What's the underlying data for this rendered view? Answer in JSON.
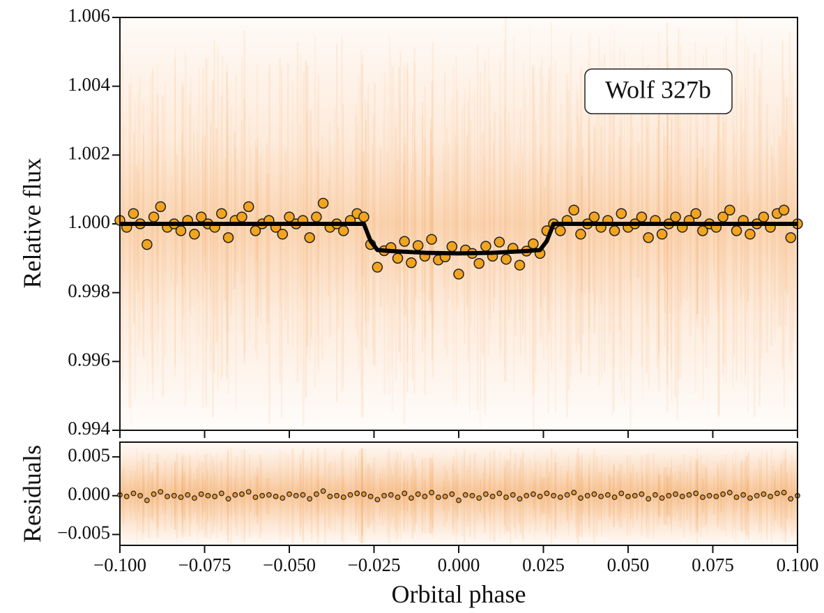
{
  "chart_data": [
    {
      "type": "scatter",
      "y_label": "Relative flux",
      "annotation": "Wolf 327b",
      "xlim": [
        -0.1,
        0.1
      ],
      "ylim": [
        0.994,
        1.006
      ],
      "yticks": [
        0.994,
        0.996,
        0.998,
        {
          "value": 1,
          "label": "1.000"
        },
        1.002,
        1.004,
        1.006
      ],
      "series": [
        {
          "type": "scatter",
          "color": "#f2a41f",
          "x": [
            -0.1,
            -0.098,
            -0.096,
            -0.094,
            -0.092,
            -0.09,
            -0.088,
            -0.086,
            -0.084,
            -0.082,
            -0.08,
            -0.078,
            -0.076,
            -0.074,
            -0.072,
            -0.07,
            -0.068,
            -0.066,
            -0.064,
            -0.062,
            -0.06,
            -0.058,
            -0.056,
            -0.054,
            -0.052,
            -0.05,
            -0.048,
            -0.046,
            -0.044,
            -0.042,
            -0.04,
            -0.038,
            -0.036,
            -0.034,
            -0.032,
            -0.03,
            -0.028,
            -0.026,
            -0.024,
            -0.022,
            -0.02,
            -0.018,
            -0.016,
            -0.014,
            -0.012,
            -0.01,
            -0.008,
            -0.006,
            -0.004,
            -0.002,
            0,
            0.002,
            0.004,
            0.006,
            0.008,
            0.01,
            0.012,
            0.014,
            0.016,
            0.018,
            0.02,
            0.022,
            0.024,
            0.026,
            0.028,
            0.03,
            0.032,
            0.034,
            0.036,
            0.038,
            0.04,
            0.042,
            0.044,
            0.046,
            0.048,
            0.05,
            0.052,
            0.054,
            0.056,
            0.058,
            0.06,
            0.062,
            0.064,
            0.066,
            0.068,
            0.07,
            0.072,
            0.074,
            0.076,
            0.078,
            0.08,
            0.082,
            0.084,
            0.086,
            0.088,
            0.09,
            0.092,
            0.094,
            0.096,
            0.098,
            0.1
          ],
          "values": [
            1.0001,
            0.9999,
            1.0003,
            1.0,
            0.9994,
            1.0002,
            1.0005,
            0.9999,
            1.0,
            0.9998,
            1.0001,
            0.9997,
            1.0002,
            1.0,
            0.9999,
            1.0003,
            0.9996,
            1.0001,
            1.0002,
            1.0005,
            0.9998,
            1.0,
            1.0001,
            0.9999,
            0.9997,
            1.0002,
            1.0,
            1.0001,
            0.9996,
            1.0002,
            1.0006,
            0.9999,
            1.0,
            0.9998,
            1.0001,
            1.0003,
            1.0002,
            0.9994,
            0.99874,
            0.99922,
            0.99931,
            0.999,
            0.99949,
            0.99887,
            0.99937,
            0.99906,
            0.99955,
            0.99895,
            0.99904,
            0.99934,
            0.99854,
            0.99924,
            0.99914,
            0.99885,
            0.99935,
            0.99906,
            0.99947,
            0.99897,
            0.99929,
            0.9988,
            0.99921,
            0.99942,
            0.99914,
            0.9998,
            1.0,
            0.9998,
            1.0001,
            1.0004,
            0.9997,
            1.0,
            1.0002,
            0.9999,
            1.0001,
            0.9998,
            1.0003,
            0.9999,
            1.0,
            1.0002,
            0.9996,
            1.0001,
            0.9997,
            1.0,
            1.0002,
            0.9999,
            1.0001,
            1.0003,
            0.9998,
            1.0,
            0.9999,
            1.0002,
            1.0004,
            0.9998,
            1.0001,
            0.9997,
            1.0,
            1.0002,
            0.9999,
            1.0003,
            1.0004,
            0.9996,
            1.0
          ]
        },
        {
          "type": "line",
          "color": "#000000",
          "x": [
            -0.1,
            -0.028,
            -0.026,
            -0.024,
            -0.02,
            -0.01,
            0,
            0.01,
            0.02,
            0.024,
            0.026,
            0.028,
            0.1
          ],
          "values": [
            1,
            1,
            0.9995,
            0.99924,
            0.99921,
            0.99916,
            0.99914,
            0.99916,
            0.99921,
            0.99924,
            0.9995,
            1,
            1
          ]
        }
      ]
    },
    {
      "type": "scatter",
      "y_label": "Residuals",
      "x_label": "Orbital phase",
      "xlim": [
        -0.1,
        0.1
      ],
      "xticks": [
        {
          "value": -0.1,
          "label": "−0.100"
        },
        {
          "value": -0.075,
          "label": "−0.075"
        },
        {
          "value": -0.05,
          "label": "−0.050"
        },
        {
          "value": -0.025,
          "label": "−0.025"
        },
        {
          "value": 0,
          "label": "0.000"
        },
        0.025,
        {
          "value": 0.05,
          "label": "0.050"
        },
        0.075,
        {
          "value": 0.1,
          "label": "0.100"
        }
      ],
      "ylim": [
        -0.0064,
        0.0069
      ],
      "yticks": [
        {
          "value": -0.005,
          "label": "−0.005"
        },
        {
          "value": 0,
          "label": "0.000"
        },
        0.005
      ],
      "series": [
        {
          "type": "scatter",
          "color": "#e59a3c",
          "values": [
            0.0001,
            -0.0001,
            0.0003,
            0,
            -0.0006,
            0.0002,
            0.0005,
            -0.0001,
            0,
            -0.0002,
            0.0001,
            -0.0003,
            0.0002,
            0,
            -0.0001,
            0.0003,
            -0.0004,
            0.0001,
            0.0002,
            0.0005,
            -0.0002,
            0,
            0.0001,
            -0.0001,
            -0.0003,
            0.0002,
            0,
            0.0001,
            -0.0004,
            0.0002,
            0.0006,
            -0.0001,
            0,
            -0.0002,
            0.0001,
            0.0003,
            0.0002,
            -0.0001,
            -0.0005,
            0,
            0.0001,
            -0.0002,
            0.0003,
            -0.0003,
            0.0002,
            -0.0001,
            0.0004,
            -0.0002,
            -0.0001,
            0.0002,
            -0.0006,
            0.0001,
            0,
            -0.0003,
            0.0002,
            -0.0001,
            0.0003,
            -0.0002,
            0.0001,
            -0.0004,
            0,
            0.0002,
            -0.0001,
            0.0003,
            0,
            -0.0002,
            0.0001,
            0.0004,
            -0.0003,
            0,
            0.0002,
            -0.0001,
            0.0001,
            -0.0002,
            0.0003,
            -0.0001,
            0,
            0.0002,
            -0.0004,
            0.0001,
            -0.0003,
            0,
            0.0002,
            -0.0001,
            0.0001,
            0.0003,
            -0.0002,
            0,
            -0.0001,
            0.0002,
            0.0004,
            -0.0002,
            0.0001,
            -0.0003,
            0,
            0.0002,
            -0.0001,
            0.0003,
            0.0004,
            -0.0004,
            0
          ]
        }
      ]
    }
  ]
}
